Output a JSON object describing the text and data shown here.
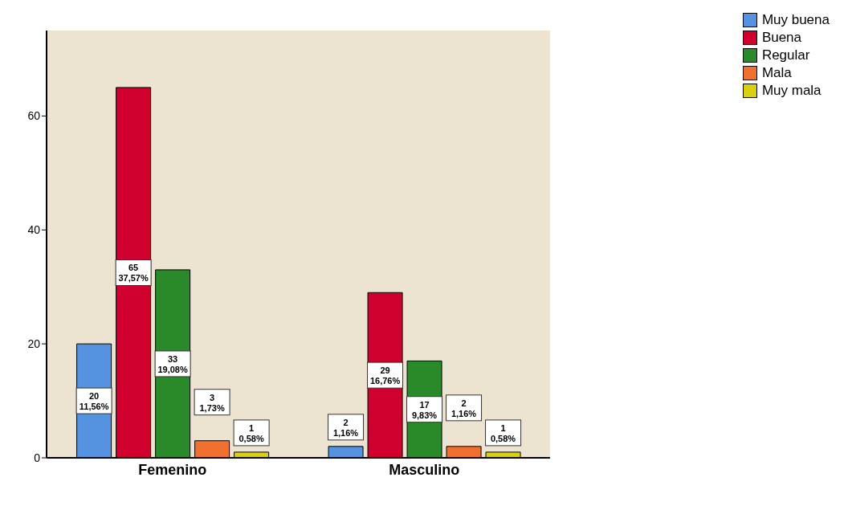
{
  "chart_data": {
    "type": "bar",
    "categories": [
      "Femenino",
      "Masculino"
    ],
    "series": [
      {
        "name": "Muy buena",
        "color": "#5592e0",
        "values": [
          20,
          2
        ],
        "value_labels": [
          "20\n11,56%",
          "2\n1,16%"
        ]
      },
      {
        "name": "Buena",
        "color": "#d0002f",
        "values": [
          65,
          29
        ],
        "value_labels": [
          "65\n37,57%",
          "29\n16,76%"
        ]
      },
      {
        "name": "Regular",
        "color": "#2a8a2a",
        "values": [
          33,
          17
        ],
        "value_labels": [
          "33\n19,08%",
          "17\n9,83%"
        ]
      },
      {
        "name": "Mala",
        "color": "#f07030",
        "values": [
          3,
          2
        ],
        "value_labels": [
          "3\n1,73%",
          "2\n1,16%"
        ]
      },
      {
        "name": "Muy mala",
        "color": "#d8d010",
        "values": [
          1,
          1
        ],
        "value_labels": [
          "1\n0,58%",
          "1\n0,58%"
        ]
      }
    ],
    "ylim": [
      0,
      75
    ],
    "yticks": [
      0,
      20,
      40,
      60
    ],
    "grid": false,
    "legend": "top right"
  }
}
